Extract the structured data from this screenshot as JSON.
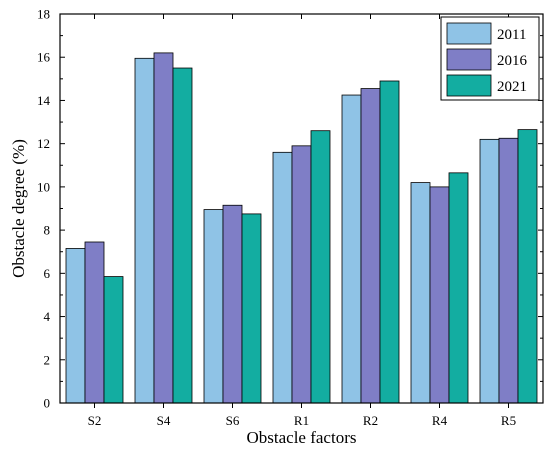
{
  "chart_data": {
    "type": "bar",
    "categories": [
      "S2",
      "S4",
      "S6",
      "R1",
      "R2",
      "R4",
      "R5"
    ],
    "series": [
      {
        "name": "2011",
        "color": "#8fc3e6",
        "values": [
          7.15,
          15.95,
          8.95,
          11.6,
          14.25,
          10.2,
          12.2
        ]
      },
      {
        "name": "2016",
        "color": "#7f7ec6",
        "values": [
          7.45,
          16.2,
          9.15,
          11.9,
          14.55,
          10.0,
          12.25
        ]
      },
      {
        "name": "2021",
        "color": "#13ada1",
        "values": [
          5.85,
          15.5,
          8.75,
          12.6,
          14.9,
          10.65,
          12.65
        ]
      }
    ],
    "xlabel": "Obstacle factors",
    "ylabel": "Obstacle degree (%)",
    "ylim": [
      0,
      18
    ],
    "yticks": [
      0,
      2,
      4,
      6,
      8,
      10,
      12,
      14,
      16,
      18
    ],
    "grid": false,
    "legend": "top-right"
  }
}
